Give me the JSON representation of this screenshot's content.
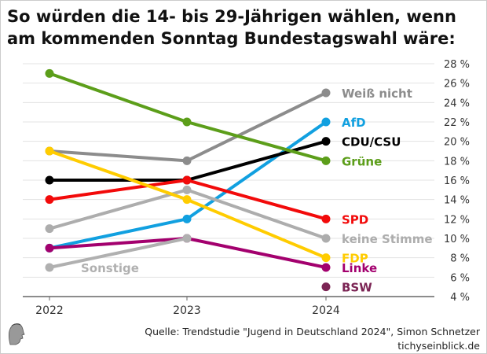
{
  "title": "So würden die 14- bis 29-Jährigen wählen, wenn am kommenden Sonntag Bundestagswahl wäre:",
  "source": "Quelle: Trendstudie \"Jugend in Deutschland 2024\", Simon Schnetzer",
  "site": "tichyseinblick.de",
  "chart_data": {
    "type": "line",
    "title": "So würden die 14- bis 29-Jährigen wählen, wenn am kommenden Sonntag Bundestagswahl wäre:",
    "x": [
      "2022",
      "2023",
      "2024"
    ],
    "ylim": [
      4,
      28
    ],
    "yticks": [
      4,
      6,
      8,
      10,
      12,
      14,
      16,
      18,
      20,
      22,
      24,
      26,
      28
    ],
    "ytick_suffix": " %",
    "grid": true,
    "series": [
      {
        "name": "Weiß nicht",
        "color": "#8c8c8c",
        "values": [
          19,
          18,
          25
        ]
      },
      {
        "name": "AfD",
        "color": "#11a0e0",
        "values": [
          9,
          12,
          22
        ]
      },
      {
        "name": "CDU/CSU",
        "color": "#000000",
        "values": [
          16,
          16,
          20
        ]
      },
      {
        "name": "Grüne",
        "color": "#5c9e1a",
        "values": [
          27,
          22,
          18
        ]
      },
      {
        "name": "SPD",
        "color": "#f20a0a",
        "values": [
          14,
          16,
          12
        ]
      },
      {
        "name": "keine Stimme",
        "color": "#adadad",
        "values": [
          11,
          15,
          10
        ]
      },
      {
        "name": "FDP",
        "color": "#ffcc00",
        "values": [
          19,
          14,
          8
        ]
      },
      {
        "name": "Linke",
        "color": "#a3006e",
        "values": [
          9,
          10,
          7
        ]
      },
      {
        "name": "BSW",
        "color": "#7b2454",
        "values": [
          null,
          null,
          5
        ]
      },
      {
        "name": "Sonstige",
        "color": "#b0b0b0",
        "values": [
          7,
          10,
          null
        ]
      }
    ]
  }
}
